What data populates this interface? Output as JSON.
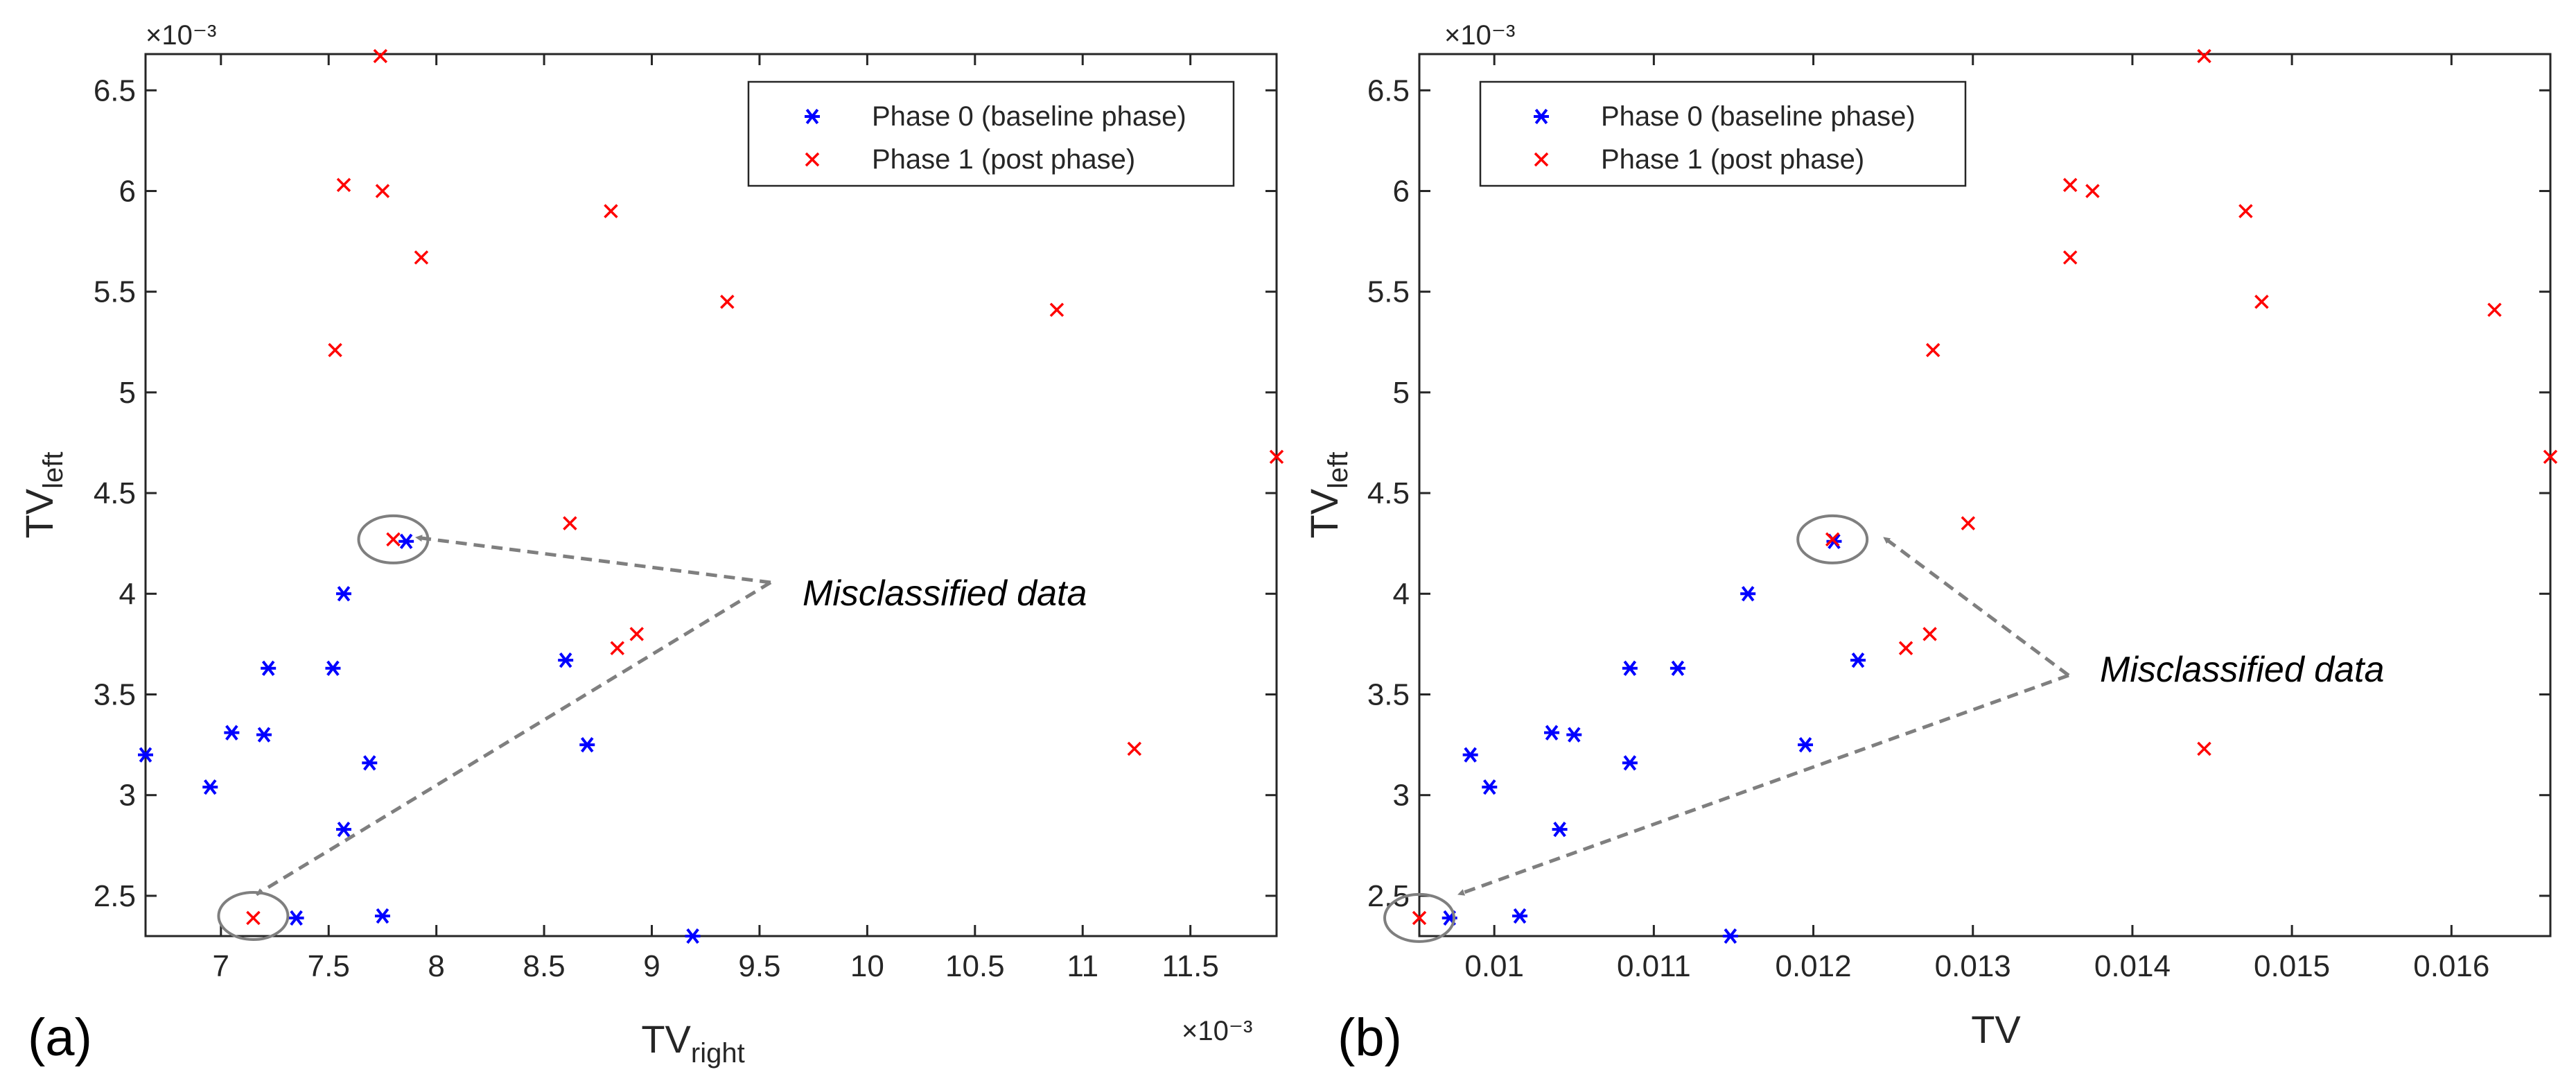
{
  "chart_data": [
    {
      "type": "scatter",
      "panel_label": "(a)",
      "xlabel": "TV",
      "xlabel_sub": "right",
      "ylabel": "TV",
      "ylabel_sub": "left",
      "x_exponent": "×10⁻³",
      "y_exponent": "×10⁻³",
      "xlim": [
        6.65,
        11.9
      ],
      "ylim": [
        2.3,
        6.68
      ],
      "xticks": [
        7,
        7.5,
        8,
        8.5,
        9,
        9.5,
        10,
        10.5,
        11,
        11.5
      ],
      "xtick_labels": [
        "7",
        "7.5",
        "8",
        "8.5",
        "9",
        "9.5",
        "10",
        "10.5",
        "11",
        "11.5"
      ],
      "yticks": [
        2.5,
        3,
        3.5,
        4,
        4.5,
        5,
        5.5,
        6,
        6.5
      ],
      "ytick_labels": [
        "2.5",
        "3",
        "3.5",
        "4",
        "4.5",
        "5",
        "5.5",
        "6",
        "6.5"
      ],
      "legend_position": "top-right",
      "annotation": "Misclassified data",
      "circled_points": [
        [
          7.8,
          4.27
        ],
        [
          7.15,
          2.4
        ]
      ],
      "series": [
        {
          "name": "Phase 0 (baseline phase)",
          "marker": "asterisk",
          "color": "#0000ff",
          "points": [
            [
              6.65,
              3.2
            ],
            [
              6.95,
              3.04
            ],
            [
              7.05,
              3.31
            ],
            [
              7.2,
              3.3
            ],
            [
              7.22,
              3.63
            ],
            [
              7.35,
              2.39
            ],
            [
              7.52,
              3.63
            ],
            [
              7.57,
              4.0
            ],
            [
              7.57,
              2.83
            ],
            [
              7.69,
              3.16
            ],
            [
              7.75,
              2.4
            ],
            [
              7.86,
              4.26
            ],
            [
              8.6,
              3.67
            ],
            [
              8.7,
              3.25
            ],
            [
              9.19,
              2.3
            ]
          ]
        },
        {
          "name": "Phase 1 (post phase)",
          "marker": "x",
          "color": "#ff0000",
          "points": [
            [
              7.15,
              2.39
            ],
            [
              7.53,
              5.21
            ],
            [
              7.57,
              6.03
            ],
            [
              7.74,
              6.67
            ],
            [
              7.75,
              6.0
            ],
            [
              7.8,
              4.27
            ],
            [
              7.93,
              5.67
            ],
            [
              8.62,
              4.35
            ],
            [
              8.81,
              5.9
            ],
            [
              8.84,
              3.73
            ],
            [
              8.93,
              3.8
            ],
            [
              9.35,
              5.45
            ],
            [
              10.88,
              5.41
            ],
            [
              11.24,
              3.23
            ],
            [
              11.9,
              4.68
            ]
          ]
        }
      ]
    },
    {
      "type": "scatter",
      "panel_label": "(b)",
      "xlabel": "TV",
      "ylabel": "TV",
      "ylabel_sub": "left",
      "y_exponent": "×10⁻³",
      "xlim": [
        0.00953,
        0.01662
      ],
      "ylim": [
        2.3,
        6.68
      ],
      "xticks": [
        0.01,
        0.011,
        0.012,
        0.013,
        0.014,
        0.015,
        0.016
      ],
      "xtick_labels": [
        "0.01",
        "0.011",
        "0.012",
        "0.013",
        "0.014",
        "0.015",
        "0.016"
      ],
      "yticks": [
        2.5,
        3,
        3.5,
        4,
        4.5,
        5,
        5.5,
        6,
        6.5
      ],
      "ytick_labels": [
        "2.5",
        "3",
        "3.5",
        "4",
        "4.5",
        "5",
        "5.5",
        "6",
        "6.5"
      ],
      "legend_position": "top-left",
      "annotation": "Misclassified data",
      "circled_points": [
        [
          0.01212,
          4.27
        ],
        [
          0.00953,
          2.39
        ]
      ],
      "series": [
        {
          "name": "Phase 0 (baseline phase)",
          "marker": "asterisk",
          "color": "#0000ff",
          "points": [
            [
              0.00972,
              2.39
            ],
            [
              0.00985,
              3.2
            ],
            [
              0.00997,
              3.04
            ],
            [
              0.01016,
              2.4
            ],
            [
              0.01036,
              3.31
            ],
            [
              0.01041,
              2.83
            ],
            [
              0.0105,
              3.3
            ],
            [
              0.01085,
              3.63
            ],
            [
              0.01085,
              3.16
            ],
            [
              0.01115,
              3.63
            ],
            [
              0.01148,
              2.3
            ],
            [
              0.01159,
              4.0
            ],
            [
              0.01195,
              3.25
            ],
            [
              0.01213,
              4.26
            ],
            [
              0.01228,
              3.67
            ]
          ]
        },
        {
          "name": "Phase 1 (post phase)",
          "marker": "x",
          "color": "#ff0000",
          "points": [
            [
              0.00953,
              2.39
            ],
            [
              0.01212,
              4.27
            ],
            [
              0.01258,
              3.73
            ],
            [
              0.01273,
              3.8
            ],
            [
              0.01275,
              5.21
            ],
            [
              0.01297,
              4.35
            ],
            [
              0.01361,
              6.03
            ],
            [
              0.01361,
              5.67
            ],
            [
              0.01375,
              6.0
            ],
            [
              0.01445,
              6.67
            ],
            [
              0.01445,
              3.23
            ],
            [
              0.01471,
              5.9
            ],
            [
              0.01481,
              5.45
            ],
            [
              0.01627,
              5.41
            ],
            [
              0.01662,
              4.68
            ]
          ]
        }
      ]
    }
  ]
}
